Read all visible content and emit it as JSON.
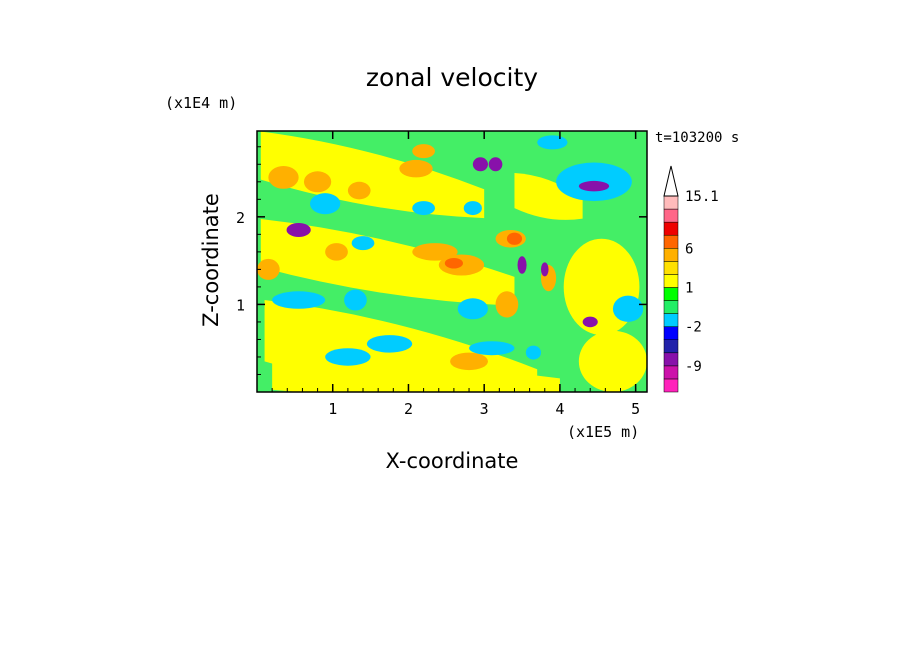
{
  "chart_data": {
    "type": "heatmap",
    "title": "zonal velocity",
    "xlabel": "X-coordinate",
    "ylabel": "Z-coordinate",
    "x_unit": "(x1E5 m)",
    "y_unit": "(x1E4 m)",
    "time_label": "t=103200 s",
    "xlim": [
      0,
      5.15
    ],
    "ylim": [
      0,
      2.98
    ],
    "x_ticks": [
      "1",
      "2",
      "3",
      "4",
      "5"
    ],
    "y_ticks": [
      "1",
      "2"
    ],
    "colorbar": {
      "labels": [
        "15.1",
        "6",
        "1",
        "-2",
        "-9"
      ],
      "label_values": [
        15.1,
        6,
        1,
        -2,
        -9
      ],
      "levels": [
        -15,
        -12,
        -9,
        -6,
        -3,
        -2,
        -1,
        0,
        1,
        2,
        3,
        6,
        9,
        12,
        15.1
      ],
      "colors": [
        "#ff22bb",
        "#cc11aa",
        "#8811aa",
        "#2222aa",
        "#0000ff",
        "#00ccff",
        "#22ee66",
        "#00ff00",
        "#ffff00",
        "#ffe000",
        "#ffb000",
        "#ff6600",
        "#ee0000",
        "#ff6688",
        "#ffbbbb"
      ],
      "extend_max": true
    },
    "background_color": "#44ee66",
    "features": [
      {
        "kind": "band",
        "value": 1,
        "x1": 0.05,
        "z1": 2.7,
        "x2": 3.0,
        "z2": 2.15,
        "width": 0.55
      },
      {
        "kind": "band",
        "value": 1,
        "x1": 0.05,
        "z1": 1.7,
        "x2": 3.4,
        "z2": 1.15,
        "width": 0.55
      },
      {
        "kind": "band",
        "value": 1,
        "x1": 0.1,
        "z1": 0.7,
        "x2": 3.7,
        "z2": 0.05,
        "width": 0.7
      },
      {
        "kind": "band",
        "value": 1,
        "x1": 0.2,
        "z1": 0.2,
        "x2": 4.0,
        "z2": 0.05,
        "width": 0.35
      },
      {
        "kind": "band",
        "value": 1,
        "x1": 3.4,
        "z1": 2.3,
        "x2": 4.3,
        "z2": 2.1,
        "width": 0.4
      },
      {
        "kind": "blob",
        "value": 1,
        "x": 4.55,
        "z": 1.2,
        "rx": 0.5,
        "rz": 0.55
      },
      {
        "kind": "blob",
        "value": 1,
        "x": 4.7,
        "z": 0.35,
        "rx": 0.45,
        "rz": 0.35
      },
      {
        "kind": "blob",
        "value": 3,
        "x": 0.35,
        "z": 2.45,
        "rx": 0.2,
        "rz": 0.13
      },
      {
        "kind": "blob",
        "value": 3,
        "x": 0.8,
        "z": 2.4,
        "rx": 0.18,
        "rz": 0.12
      },
      {
        "kind": "blob",
        "value": 3,
        "x": 1.35,
        "z": 2.3,
        "rx": 0.15,
        "rz": 0.1
      },
      {
        "kind": "blob",
        "value": 3,
        "x": 2.1,
        "z": 2.55,
        "rx": 0.22,
        "rz": 0.1
      },
      {
        "kind": "blob",
        "value": 3,
        "x": 2.35,
        "z": 1.6,
        "rx": 0.3,
        "rz": 0.1
      },
      {
        "kind": "blob",
        "value": 3,
        "x": 2.7,
        "z": 1.45,
        "rx": 0.3,
        "rz": 0.12
      },
      {
        "kind": "blob",
        "value": 6,
        "x": 2.6,
        "z": 1.47,
        "rx": 0.12,
        "rz": 0.06
      },
      {
        "kind": "blob",
        "value": 3,
        "x": 0.15,
        "z": 1.4,
        "rx": 0.15,
        "rz": 0.12
      },
      {
        "kind": "blob",
        "value": 3,
        "x": 1.05,
        "z": 1.6,
        "rx": 0.15,
        "rz": 0.1
      },
      {
        "kind": "blob",
        "value": 3,
        "x": 3.35,
        "z": 1.75,
        "rx": 0.2,
        "rz": 0.1
      },
      {
        "kind": "blob",
        "value": 6,
        "x": 3.4,
        "z": 1.75,
        "rx": 0.1,
        "rz": 0.07
      },
      {
        "kind": "blob",
        "value": 3,
        "x": 2.8,
        "z": 0.35,
        "rx": 0.25,
        "rz": 0.1
      },
      {
        "kind": "blob",
        "value": 3,
        "x": 3.3,
        "z": 1.0,
        "rx": 0.15,
        "rz": 0.15
      },
      {
        "kind": "blob",
        "value": 3,
        "x": 3.85,
        "z": 1.3,
        "rx": 0.1,
        "rz": 0.15
      },
      {
        "kind": "blob",
        "value": 3,
        "x": 2.2,
        "z": 2.75,
        "rx": 0.15,
        "rz": 0.08
      },
      {
        "kind": "blob",
        "value": -2,
        "x": 0.9,
        "z": 2.15,
        "rx": 0.2,
        "rz": 0.12
      },
      {
        "kind": "blob",
        "value": -2,
        "x": 1.4,
        "z": 1.7,
        "rx": 0.15,
        "rz": 0.08
      },
      {
        "kind": "blob",
        "value": -2,
        "x": 2.2,
        "z": 2.1,
        "rx": 0.15,
        "rz": 0.08
      },
      {
        "kind": "blob",
        "value": -2,
        "x": 2.85,
        "z": 2.1,
        "rx": 0.12,
        "rz": 0.08
      },
      {
        "kind": "blob",
        "value": -2,
        "x": 0.55,
        "z": 1.05,
        "rx": 0.35,
        "rz": 0.1
      },
      {
        "kind": "blob",
        "value": -2,
        "x": 1.3,
        "z": 1.05,
        "rx": 0.15,
        "rz": 0.12
      },
      {
        "kind": "blob",
        "value": -2,
        "x": 2.85,
        "z": 0.95,
        "rx": 0.2,
        "rz": 0.12
      },
      {
        "kind": "blob",
        "value": -2,
        "x": 1.75,
        "z": 0.55,
        "rx": 0.3,
        "rz": 0.1
      },
      {
        "kind": "blob",
        "value": -2,
        "x": 1.2,
        "z": 0.4,
        "rx": 0.3,
        "rz": 0.1
      },
      {
        "kind": "blob",
        "value": -2,
        "x": 3.1,
        "z": 0.5,
        "rx": 0.3,
        "rz": 0.08
      },
      {
        "kind": "blob",
        "value": -2,
        "x": 3.65,
        "z": 0.45,
        "rx": 0.1,
        "rz": 0.08
      },
      {
        "kind": "blob",
        "value": -2,
        "x": 4.45,
        "z": 2.4,
        "rx": 0.5,
        "rz": 0.22
      },
      {
        "kind": "blob",
        "value": -2,
        "x": 4.9,
        "z": 0.95,
        "rx": 0.2,
        "rz": 0.15
      },
      {
        "kind": "blob",
        "value": -2,
        "x": 3.9,
        "z": 2.85,
        "rx": 0.2,
        "rz": 0.08
      },
      {
        "kind": "blob",
        "value": -9,
        "x": 0.55,
        "z": 1.85,
        "rx": 0.16,
        "rz": 0.08
      },
      {
        "kind": "blob",
        "value": -9,
        "x": 2.95,
        "z": 2.6,
        "rx": 0.1,
        "rz": 0.08
      },
      {
        "kind": "blob",
        "value": -9,
        "x": 3.15,
        "z": 2.6,
        "rx": 0.09,
        "rz": 0.08
      },
      {
        "kind": "blob",
        "value": -9,
        "x": 4.45,
        "z": 2.35,
        "rx": 0.2,
        "rz": 0.06
      },
      {
        "kind": "blob",
        "value": -9,
        "x": 4.4,
        "z": 0.8,
        "rx": 0.1,
        "rz": 0.06
      },
      {
        "kind": "blob",
        "value": -9,
        "x": 3.5,
        "z": 1.45,
        "rx": 0.06,
        "rz": 0.1
      },
      {
        "kind": "blob",
        "value": -9,
        "x": 3.8,
        "z": 1.4,
        "rx": 0.05,
        "rz": 0.08
      }
    ]
  }
}
